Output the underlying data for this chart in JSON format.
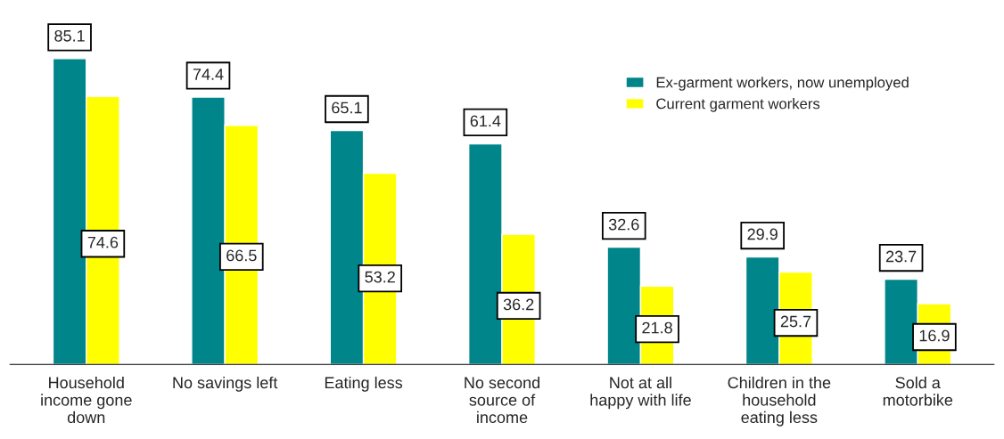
{
  "chart_data": {
    "type": "bar",
    "categories": [
      "Household income gone down",
      "No savings left",
      "Eating less",
      "No second source of income",
      "Not at all happy with life",
      "Children in the household eating less",
      "Sold a motorbike"
    ],
    "series": [
      {
        "name": "Ex-garment workers, now unemployed",
        "color": "#00858a",
        "values": [
          85.1,
          74.4,
          65.1,
          61.4,
          32.6,
          29.9,
          23.7
        ]
      },
      {
        "name": "Current garment workers",
        "color": "#ffff00",
        "values": [
          74.6,
          66.5,
          53.2,
          36.2,
          21.8,
          25.7,
          16.9
        ]
      }
    ],
    "data_labels": true,
    "legend": "top right",
    "grid": false
  }
}
